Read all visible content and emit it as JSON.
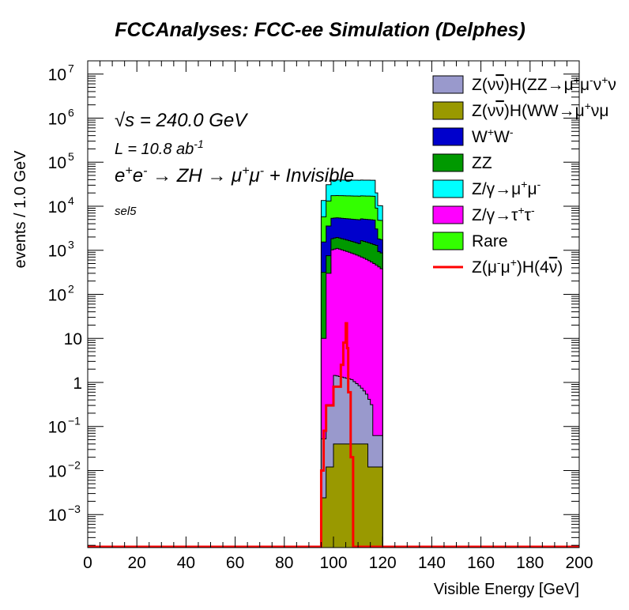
{
  "chart_data": {
    "type": "area",
    "title": "FCCAnalyses: FCC-ee Simulation (Delphes)",
    "xlabel": "Visible Energy [GeV]",
    "ylabel": "events / 1.0 GeV",
    "xlim": [
      0,
      200
    ],
    "ylim_log10": [
      -3.75,
      7.3
    ],
    "log_y": true,
    "grid": false,
    "legend_position": "top-right",
    "x_ticks": [
      "0",
      "20",
      "40",
      "60",
      "80",
      "100",
      "120",
      "140",
      "160",
      "180",
      "200"
    ],
    "annotations": {
      "sqrt_s": "√s = 240.0 GeV",
      "lumi": "L = 10.8 ab⁻¹",
      "process": "e⁺e⁻ → ZH → μ⁺μ⁻ + Invisible",
      "selection": "sel5"
    },
    "stacked_series_totals_at_peak": [
      {
        "name": "Z(νν̄)H(ZZ→μ⁺μ⁻ν⁺ν",
        "color": "#9999cc",
        "approx_peak": 1.6
      },
      {
        "name": "Z(νν̄)H(WW→μ⁺νμ",
        "color": "#999900",
        "approx_peak": 0.05
      },
      {
        "name": "W⁺W⁻",
        "color": "#0000cc",
        "approx_peak": 5000
      },
      {
        "name": "ZZ",
        "color": "#009900",
        "approx_peak": 1500
      },
      {
        "name": "Z/γ→μ⁺μ⁻",
        "color": "#00ffff",
        "approx_peak": 35000
      },
      {
        "name": "Z/γ→τ⁺τ⁻",
        "color": "#ff00ff",
        "approx_peak": 1100
      },
      {
        "name": "Rare",
        "color": "#33ff00",
        "approx_peak": 15000
      }
    ],
    "signal": {
      "name": "Z(μ⁻μ⁺)H(4ν̄)",
      "color": "#ff0000",
      "approx_peak": 22,
      "peak_x": 104.5
    },
    "legend": [
      {
        "label": "Z(νν̄)H(ZZ→μ⁺μ⁻ν⁺ν",
        "color": "#9999cc",
        "style": "box"
      },
      {
        "label": "Z(νν̄)H(WW→μ⁺νμ",
        "color": "#999900",
        "style": "box"
      },
      {
        "label": "W⁺W⁻",
        "color": "#0000cc",
        "style": "box"
      },
      {
        "label": "ZZ",
        "color": "#009900",
        "style": "box"
      },
      {
        "label": "Z/γ→μ⁺μ⁻",
        "color": "#00ffff",
        "style": "box"
      },
      {
        "label": "Z/γ→τ⁺τ⁻",
        "color": "#ff00ff",
        "style": "box"
      },
      {
        "label": "Rare",
        "color": "#33ff00",
        "style": "box"
      },
      {
        "label": "Z(μ⁻μ⁺)H(4ν̄)",
        "color": "#ff0000",
        "style": "line"
      }
    ]
  }
}
